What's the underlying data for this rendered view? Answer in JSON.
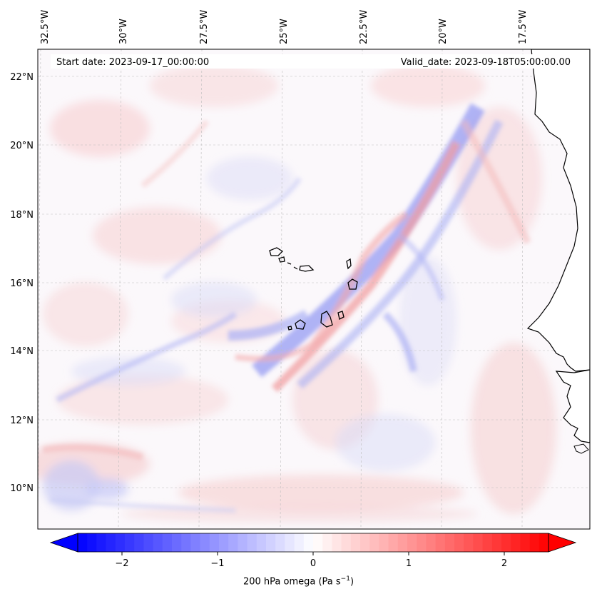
{
  "map": {
    "start_date": "Start date: 2023-09-17_00:00:00",
    "valid_date": "Valid_date: 2023-09-18T05:00:00.00",
    "lon_ticks": [
      "32.5°W",
      "30°W",
      "27.5°W",
      "25°W",
      "22.5°W",
      "20°W",
      "17.5°W"
    ],
    "lat_ticks": [
      "22°N",
      "20°N",
      "18°N",
      "16°N",
      "14°N",
      "12°N",
      "10°N"
    ]
  },
  "colorbar": {
    "label_prefix": "200 hPa omega (Pa s",
    "label_exp": "−1",
    "label_suffix": ")",
    "ticks": [
      "−2",
      "−1",
      "0",
      "1",
      "2"
    ],
    "colors": {
      "min": "#0000ff",
      "mid": "#ffffff",
      "max": "#ff0000"
    }
  }
}
